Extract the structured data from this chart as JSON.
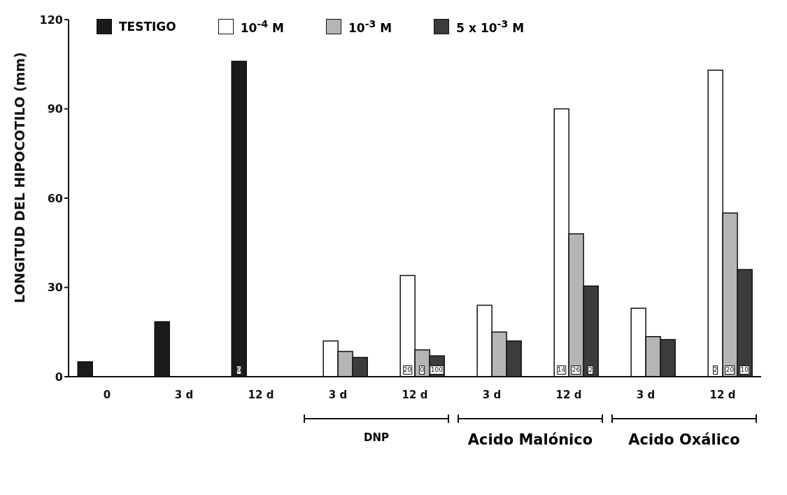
{
  "chart_data": {
    "type": "bar",
    "ylabel": "LONGITUD DEL HIPOCOTILO (mm)",
    "categories": [
      "0",
      "3 d",
      "12 d",
      "3 d",
      "12 d",
      "3 d",
      "12 d",
      "3 d",
      "12 d"
    ],
    "series": [
      {
        "name": "TESTIGO",
        "color": "#1a1a1a",
        "values": [
          5,
          18.5,
          106,
          null,
          null,
          null,
          null,
          null,
          null
        ]
      },
      {
        "name": "10$^{-4}$ M",
        "color": "#ffffff",
        "values": [
          null,
          null,
          null,
          12,
          34,
          24,
          90,
          23,
          103
        ]
      },
      {
        "name": "10$^{-3}$ M",
        "color": "#b5b5b5",
        "values": [
          null,
          null,
          null,
          8.5,
          9,
          15,
          48,
          13.5,
          55
        ]
      },
      {
        "name": "5 x 10$^{-3}$ M",
        "color": "#3c3c3c",
        "values": [
          null,
          null,
          null,
          6.5,
          7,
          12,
          30.5,
          12.5,
          36
        ]
      }
    ],
    "ylim": [
      0,
      120
    ],
    "yticks": [
      0,
      30,
      60,
      90,
      120
    ],
    "grid": false,
    "legend": "top",
    "annotations": [
      "6",
      "20",
      "0",
      "100",
      "14",
      "26",
      "2",
      "2",
      "20",
      "10",
      "DNP",
      "Acido Malónico",
      "Acido Oxálico"
    ]
  }
}
